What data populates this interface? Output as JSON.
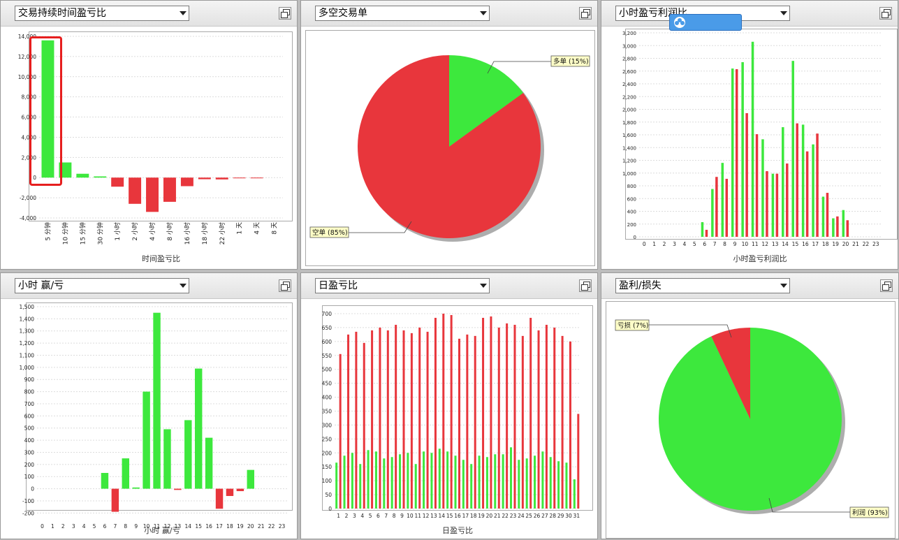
{
  "panels": [
    {
      "id": "p1",
      "select_label": "交易持续时间盈亏比",
      "chart_data": {
        "type": "bar",
        "xlabel": "时间盈亏比",
        "ylim": [
          -4000,
          14000
        ],
        "yticks": [
          -4000,
          -2000,
          0,
          2000,
          4000,
          6000,
          8000,
          10000,
          12000,
          14000
        ],
        "ytick_labels": [
          "-4,000",
          "-2,000",
          "0",
          "2,000",
          "4,000",
          "6,000",
          "8,000",
          "10,000",
          "12,000",
          "14,000"
        ],
        "categories": [
          "5 分钟",
          "10 分钟",
          "15 分钟",
          "30 分钟",
          "1 小时",
          "2 小时",
          "4 小时",
          "8 小时",
          "16 小时",
          "18 小时",
          "22 小时",
          "1 天",
          "4 天",
          "8 天"
        ],
        "values": [
          13600,
          1500,
          380,
          120,
          -900,
          -2600,
          -3400,
          -2400,
          -850,
          -160,
          -180,
          -60,
          -50,
          0
        ],
        "highlighted_category": "5 分钟"
      }
    },
    {
      "id": "p2",
      "select_label": "多空交易单",
      "chart_data": {
        "type": "pie",
        "slices": [
          {
            "label": "多单",
            "percent_label": "15%",
            "value": 15,
            "color": "#3de83d"
          },
          {
            "label": "空单",
            "percent_label": "85%",
            "value": 85,
            "color": "#e8363c"
          }
        ]
      }
    },
    {
      "id": "p3",
      "select_label": "小时盈亏利润比",
      "chart_data": {
        "type": "bar",
        "xlabel": "小时盈亏利润比",
        "ylim": [
          0,
          3200
        ],
        "yticks": [
          0,
          200,
          400,
          600,
          800,
          1000,
          1200,
          1400,
          1600,
          1800,
          2000,
          2200,
          2400,
          2600,
          2800,
          3000,
          3200
        ],
        "ytick_labels": [
          "0",
          "200",
          "400",
          "600",
          "800",
          "1,000",
          "1,200",
          "1,400",
          "1,600",
          "1,800",
          "2,000",
          "2,200",
          "2,400",
          "2,600",
          "2,800",
          "3,000",
          "3,200"
        ],
        "categories": [
          "0",
          "1",
          "2",
          "3",
          "4",
          "5",
          "6",
          "7",
          "8",
          "9",
          "10",
          "11",
          "12",
          "13",
          "14",
          "15",
          "16",
          "17",
          "18",
          "19",
          "20",
          "21",
          "22",
          "23"
        ],
        "series": [
          {
            "values": [
              0,
              0,
              0,
              0,
              0,
              0,
              230,
              750,
              1160,
              2640,
              2740,
              3060,
              1530,
              990,
              1720,
              2760,
              1760,
              1450,
              630,
              290,
              420,
              0,
              0,
              0
            ],
            "color": "#3de83d"
          },
          {
            "values": [
              0,
              0,
              0,
              0,
              0,
              0,
              110,
              940,
              910,
              2630,
              1940,
              1610,
              1030,
              990,
              1150,
              1780,
              1340,
              1620,
              690,
              320,
              260,
              0,
              0,
              0
            ],
            "color": "#e8363c"
          }
        ]
      }
    },
    {
      "id": "p4",
      "select_label": "小时 赢/亏",
      "chart_data": {
        "type": "bar",
        "xlabel": "小时 赢/亏",
        "ylim": [
          -250,
          1500
        ],
        "yticks": [
          -200,
          -100,
          0,
          100,
          200,
          300,
          400,
          500,
          600,
          700,
          800,
          900,
          1000,
          1100,
          1200,
          1300,
          1400,
          1500
        ],
        "ytick_labels": [
          "-200",
          "-100",
          "0",
          "100",
          "200",
          "300",
          "400",
          "500",
          "600",
          "700",
          "800",
          "900",
          "1,000",
          "1,100",
          "1,200",
          "1,300",
          "1,400",
          "1,500"
        ],
        "categories": [
          "0",
          "1",
          "2",
          "3",
          "4",
          "5",
          "6",
          "7",
          "8",
          "9",
          "10",
          "11",
          "12",
          "13",
          "14",
          "15",
          "16",
          "17",
          "18",
          "19",
          "20",
          "21",
          "22",
          "23"
        ],
        "values": [
          0,
          0,
          0,
          0,
          0,
          0,
          130,
          -190,
          250,
          10,
          800,
          1450,
          490,
          -10,
          565,
          990,
          420,
          -165,
          -60,
          -20,
          155,
          0,
          0,
          0
        ]
      }
    },
    {
      "id": "p5",
      "select_label": "日盈亏比",
      "chart_data": {
        "type": "bar",
        "xlabel": "日盈亏比",
        "ylim": [
          0,
          700
        ],
        "yticks": [
          0,
          50,
          100,
          150,
          200,
          250,
          300,
          350,
          400,
          450,
          500,
          550,
          600,
          650,
          700
        ],
        "ytick_labels": [
          "0",
          "50",
          "100",
          "150",
          "200",
          "250",
          "300",
          "350",
          "400",
          "450",
          "500",
          "550",
          "600",
          "650",
          "700"
        ],
        "categories": [
          "1",
          "2",
          "3",
          "4",
          "5",
          "6",
          "7",
          "8",
          "9",
          "10",
          "11",
          "12",
          "13",
          "14",
          "15",
          "16",
          "17",
          "18",
          "19",
          "20",
          "21",
          "22",
          "23",
          "24",
          "25",
          "26",
          "27",
          "28",
          "29",
          "30",
          "31"
        ],
        "series": [
          {
            "values": [
              165,
              190,
              200,
              160,
              210,
              205,
              180,
              185,
              195,
              200,
              160,
              205,
              200,
              215,
              205,
              190,
              175,
              160,
              190,
              185,
              195,
              195,
              220,
              175,
              180,
              190,
              205,
              185,
              170,
              165,
              105
            ],
            "color": "#3de83d"
          },
          {
            "values": [
              555,
              625,
              635,
              595,
              640,
              650,
              640,
              660,
              640,
              630,
              650,
              635,
              685,
              700,
              695,
              610,
              625,
              620,
              685,
              690,
              650,
              665,
              660,
              620,
              685,
              640,
              660,
              650,
              620,
              600,
              340
            ],
            "color": "#e8363c"
          }
        ]
      }
    },
    {
      "id": "p6",
      "select_label": "盈利/损失",
      "chart_data": {
        "type": "pie",
        "slices": [
          {
            "label": "利润",
            "percent_label": "93%",
            "value": 93,
            "color": "#3de83d"
          },
          {
            "label": "亏损",
            "percent_label": "7%",
            "value": 7,
            "color": "#e8363c"
          }
        ]
      }
    }
  ]
}
